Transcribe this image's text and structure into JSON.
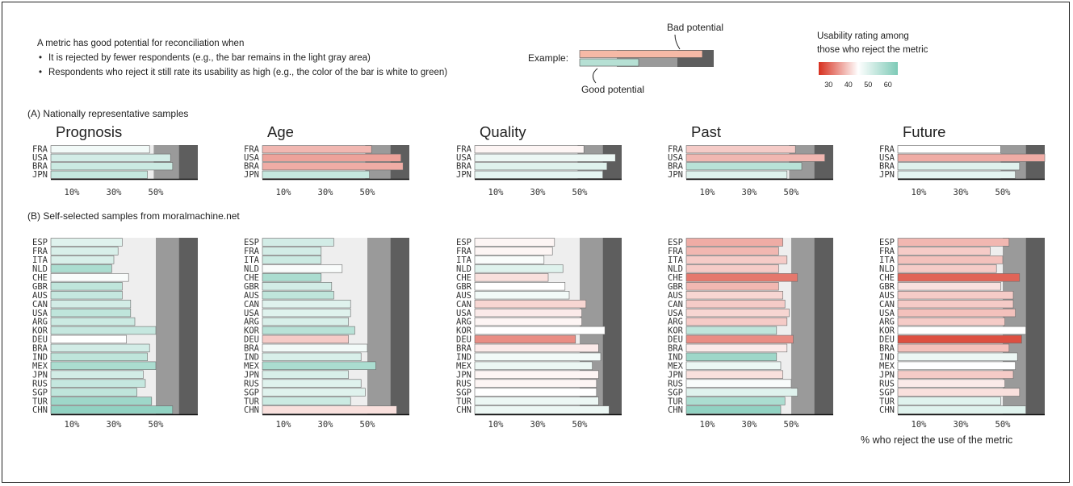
{
  "legend": {
    "intro": "A metric has good potential for reconciliation when",
    "bullets": [
      "It is rejected by fewer respondents (e.g., the bar remains in the light gray area)",
      "Respondents who reject it still rate its usability as high (e.g., the color of the bar is white to green)"
    ],
    "example_label": "Example:",
    "bad_label": "Bad potential",
    "good_label": "Good potential",
    "colorbar_title_1": "Usability rating among",
    "colorbar_title_2": "those who reject the metric",
    "colorbar_ticks": [
      "30",
      "40",
      "50",
      "60"
    ],
    "colors": {
      "low": "#d7301f",
      "mid": "#ffffff",
      "high": "#7ecab7",
      "light_gray": "#eeeeee",
      "mid_gray": "#9a9a9a",
      "dark_gray": "#5e5e5e"
    }
  },
  "sections": {
    "a_title": "(A) Nationally representative samples",
    "b_title": "(B) Self-selected samples from moralmachine.net"
  },
  "x_axis": {
    "ticks": [
      "10%",
      "30%",
      "50%"
    ],
    "xlabel": "% who reject the use of the metric"
  },
  "chart_data": [
    {
      "type": "bar",
      "section": "A",
      "metrics": [
        "Prognosis",
        "Age",
        "Quality",
        "Past",
        "Future"
      ],
      "categories": [
        "FRA",
        "USA",
        "BRA",
        "JPN"
      ],
      "xlim": [
        0,
        70
      ],
      "gray_zones": [
        49,
        61
      ],
      "series": [
        {
          "metric": "Prognosis",
          "values": [
            47,
            57,
            58,
            46
          ],
          "usability": [
            47,
            52,
            53,
            54
          ]
        },
        {
          "metric": "Age",
          "values": [
            52,
            66,
            67,
            51
          ],
          "usability": [
            38,
            36,
            37,
            54
          ]
        },
        {
          "metric": "Quality",
          "values": [
            52,
            67,
            63,
            61
          ],
          "usability": [
            44,
            48,
            50,
            49
          ]
        },
        {
          "metric": "Past",
          "values": [
            52,
            66,
            55,
            48
          ],
          "usability": [
            40,
            38,
            56,
            50
          ]
        },
        {
          "metric": "Future",
          "values": [
            49,
            70,
            58,
            56
          ],
          "usability": [
            45,
            37,
            50,
            49
          ]
        }
      ]
    },
    {
      "type": "bar",
      "section": "B",
      "metrics": [
        "Prognosis",
        "Age",
        "Quality",
        "Past",
        "Future"
      ],
      "categories": [
        "ESP",
        "FRA",
        "ITA",
        "NLD",
        "CHE",
        "GBR",
        "AUS",
        "CAN",
        "USA",
        "ARG",
        "KOR",
        "DEU",
        "BRA",
        "IND",
        "MEX",
        "JPN",
        "RUS",
        "SGP",
        "TUR",
        "CHN"
      ],
      "xlim": [
        0,
        70
      ],
      "gray_zones": [
        50,
        61
      ],
      "series": [
        {
          "metric": "Prognosis",
          "values": [
            34,
            32,
            30,
            29,
            37,
            34,
            34,
            38,
            38,
            40,
            50,
            36,
            47,
            46,
            50,
            44,
            45,
            41,
            48,
            58
          ],
          "usability": [
            50,
            51,
            51,
            58,
            46,
            55,
            54,
            52,
            55,
            53,
            54,
            45,
            52,
            55,
            58,
            52,
            54,
            55,
            60,
            62
          ]
        },
        {
          "metric": "Age",
          "values": [
            34,
            28,
            28,
            38,
            28,
            33,
            34,
            42,
            42,
            41,
            44,
            41,
            50,
            47,
            54,
            41,
            47,
            49,
            42,
            64
          ],
          "usability": [
            52,
            52,
            53,
            46,
            58,
            52,
            55,
            50,
            50,
            51,
            56,
            40,
            47,
            51,
            58,
            51,
            50,
            50,
            53,
            42
          ]
        },
        {
          "metric": "Quality",
          "values": [
            38,
            37,
            33,
            42,
            35,
            43,
            45,
            53,
            51,
            51,
            62,
            48,
            59,
            60,
            56,
            59,
            58,
            58,
            59,
            64
          ],
          "usability": [
            44,
            44,
            46,
            50,
            42,
            45,
            47,
            41,
            43,
            44,
            45,
            34,
            43,
            47,
            48,
            44,
            44,
            45,
            48,
            48
          ]
        },
        {
          "metric": "Past",
          "values": [
            46,
            44,
            48,
            44,
            53,
            44,
            46,
            47,
            49,
            48,
            43,
            51,
            48,
            43,
            45,
            46,
            50,
            53,
            47,
            45
          ],
          "usability": [
            37,
            38,
            40,
            40,
            32,
            38,
            41,
            40,
            41,
            40,
            55,
            34,
            43,
            60,
            48,
            42,
            46,
            50,
            58,
            62
          ]
        },
        {
          "metric": "Future",
          "values": [
            53,
            44,
            50,
            47,
            58,
            49,
            55,
            55,
            56,
            51,
            61,
            59,
            53,
            57,
            56,
            55,
            51,
            58,
            49,
            61
          ],
          "usability": [
            38,
            40,
            39,
            40,
            30,
            42,
            40,
            40,
            39,
            40,
            45,
            28,
            39,
            48,
            45,
            40,
            43,
            42,
            50,
            50
          ]
        }
      ]
    }
  ]
}
